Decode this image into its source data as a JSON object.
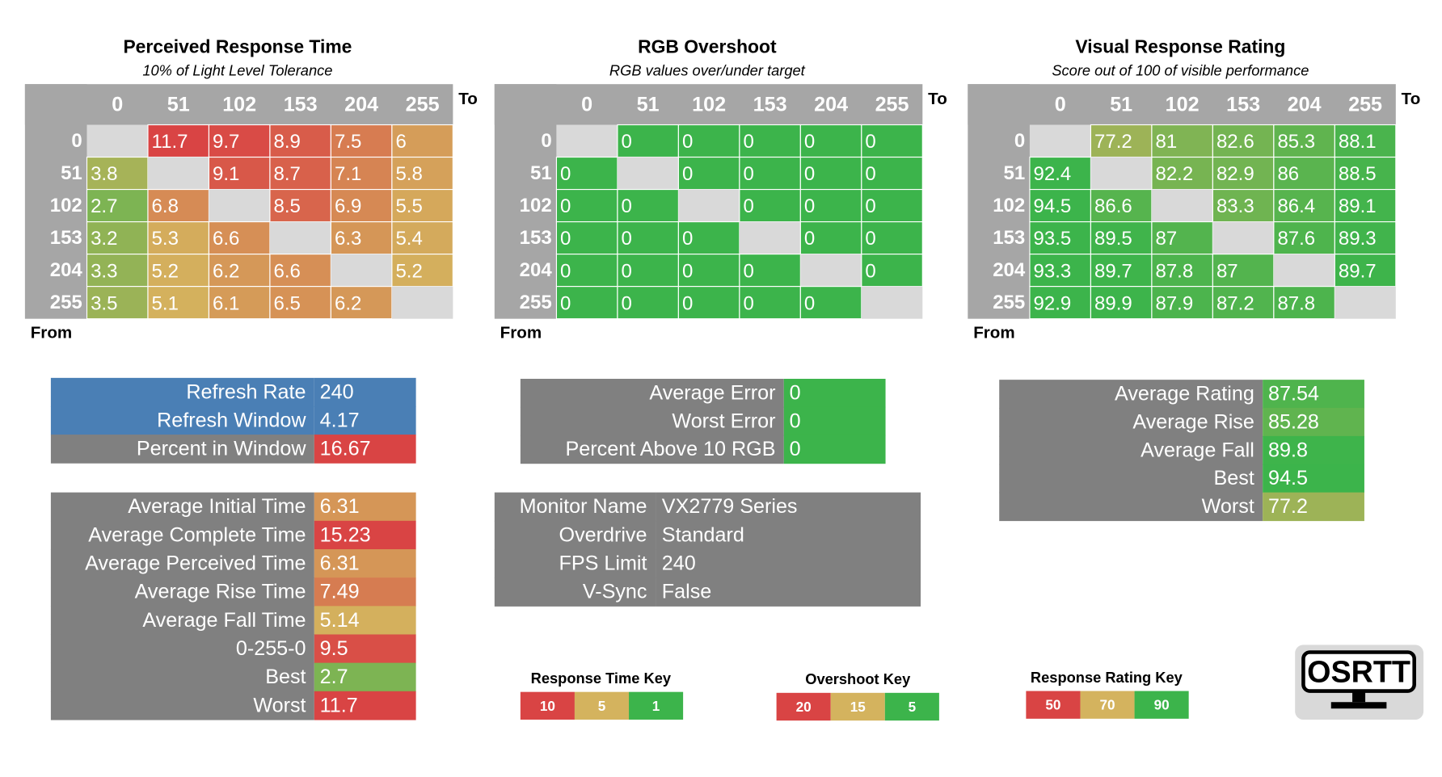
{
  "heatmaps": [
    {
      "title": "Perceived Response Time",
      "subtitle": "10% of Light Level Tolerance",
      "to_label": "To",
      "from_label": "From",
      "columns": [
        0,
        51,
        102,
        153,
        204,
        255
      ],
      "rows": [
        0,
        51,
        102,
        153,
        204,
        255
      ],
      "cells": [
        [
          null,
          11.7,
          9.7,
          8.9,
          7.5,
          6
        ],
        [
          3.8,
          null,
          9.1,
          8.7,
          7.1,
          5.8
        ],
        [
          2.7,
          6.8,
          null,
          8.5,
          6.9,
          5.5
        ],
        [
          3.2,
          5.3,
          6.6,
          null,
          6.3,
          5.4
        ],
        [
          3.3,
          5.2,
          6.2,
          6.6,
          null,
          5.2
        ],
        [
          3.5,
          5.1,
          6.1,
          6.5,
          6.2,
          null
        ]
      ]
    },
    {
      "title": "RGB Overshoot",
      "subtitle": "RGB values over/under target",
      "to_label": "To",
      "from_label": "From",
      "columns": [
        0,
        51,
        102,
        153,
        204,
        255
      ],
      "rows": [
        0,
        51,
        102,
        153,
        204,
        255
      ],
      "cells": [
        [
          null,
          0,
          0,
          0,
          0,
          0
        ],
        [
          0,
          null,
          0,
          0,
          0,
          0
        ],
        [
          0,
          0,
          null,
          0,
          0,
          0
        ],
        [
          0,
          0,
          0,
          null,
          0,
          0
        ],
        [
          0,
          0,
          0,
          0,
          null,
          0
        ],
        [
          0,
          0,
          0,
          0,
          0,
          null
        ]
      ]
    },
    {
      "title": "Visual Response Rating",
      "subtitle": "Score out of 100 of visible performance",
      "to_label": "To",
      "from_label": "From",
      "columns": [
        0,
        51,
        102,
        153,
        204,
        255
      ],
      "rows": [
        0,
        51,
        102,
        153,
        204,
        255
      ],
      "cells": [
        [
          null,
          77.2,
          81,
          82.6,
          85.3,
          88.1
        ],
        [
          92.4,
          null,
          82.2,
          82.9,
          86,
          88.5
        ],
        [
          94.5,
          86.6,
          null,
          83.3,
          86.4,
          89.1
        ],
        [
          93.5,
          89.5,
          87,
          null,
          87.6,
          89.3
        ],
        [
          93.3,
          89.7,
          87.8,
          87,
          null,
          89.7
        ],
        [
          92.9,
          89.9,
          87.9,
          87.2,
          87.8,
          null
        ]
      ]
    }
  ],
  "refresh_stats": [
    {
      "label": "Refresh Rate",
      "value": 240
    },
    {
      "label": "Refresh Window",
      "value": 4.17
    },
    {
      "label": "Percent in Window",
      "value": 16.67
    }
  ],
  "time_stats": [
    {
      "label": "Average Initial Time",
      "value": 6.31
    },
    {
      "label": "Average Complete Time",
      "value": 15.23
    },
    {
      "label": "Average Perceived Time",
      "value": 6.31
    },
    {
      "label": "Average Rise Time",
      "value": 7.49
    },
    {
      "label": "Average Fall Time",
      "value": 5.14
    },
    {
      "label": "0-255-0",
      "value": 9.5
    },
    {
      "label": "Best",
      "value": 2.7
    },
    {
      "label": "Worst",
      "value": 11.7
    }
  ],
  "overshoot_stats": [
    {
      "label": "Average Error",
      "value": 0
    },
    {
      "label": "Worst Error",
      "value": 0
    },
    {
      "label": "Percent Above 10 RGB",
      "value": 0
    }
  ],
  "monitor_info": [
    {
      "label": "Monitor Name",
      "value": "VX2779 Series"
    },
    {
      "label": "Overdrive",
      "value": "Standard"
    },
    {
      "label": "FPS Limit",
      "value": 240
    },
    {
      "label": "V-Sync",
      "value": "False"
    }
  ],
  "rating_stats": [
    {
      "label": "Average Rating",
      "value": 87.54
    },
    {
      "label": "Average Rise",
      "value": 85.28
    },
    {
      "label": "Average Fall",
      "value": 89.8
    },
    {
      "label": "Best",
      "value": 94.5
    },
    {
      "label": "Worst",
      "value": 77.2
    }
  ],
  "keys": [
    {
      "title": "Response Time Key",
      "values": [
        10,
        5,
        1
      ],
      "colors": [
        "#d94444",
        "#d4b35e",
        "#3cb44b"
      ]
    },
    {
      "title": "Overshoot Key",
      "values": [
        20,
        15,
        5
      ],
      "colors": [
        "#d94444",
        "#d4b35e",
        "#3cb44b"
      ]
    },
    {
      "title": "Response Rating Key",
      "values": [
        50,
        70,
        90
      ],
      "colors": [
        "#d94444",
        "#d4b35e",
        "#3cb44b"
      ]
    }
  ],
  "logo": "OSRTT"
}
